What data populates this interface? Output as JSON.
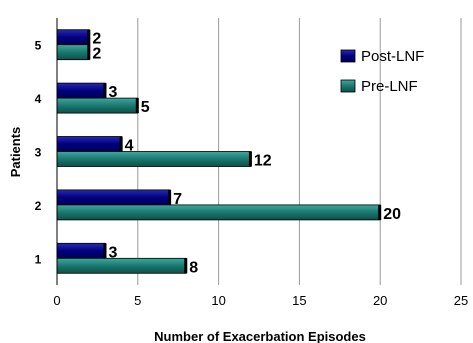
{
  "chart_data": {
    "type": "bar",
    "orientation": "horizontal",
    "categories": [
      "1",
      "2",
      "3",
      "4",
      "5"
    ],
    "series": [
      {
        "name": "Post-LNF",
        "values": [
          3,
          7,
          4,
          3,
          2
        ],
        "color": "#000080"
      },
      {
        "name": "Pre-LNF",
        "values": [
          8,
          20,
          12,
          5,
          2
        ],
        "color": "#1a7870"
      }
    ],
    "xlabel": "Number of Exacerbation Episodes",
    "ylabel": "Patients",
    "xlim": [
      0,
      25
    ],
    "xticks": [
      0,
      5,
      10,
      15,
      20,
      25
    ],
    "grid": "vertical",
    "legend": "top-right",
    "data_labels": true
  }
}
